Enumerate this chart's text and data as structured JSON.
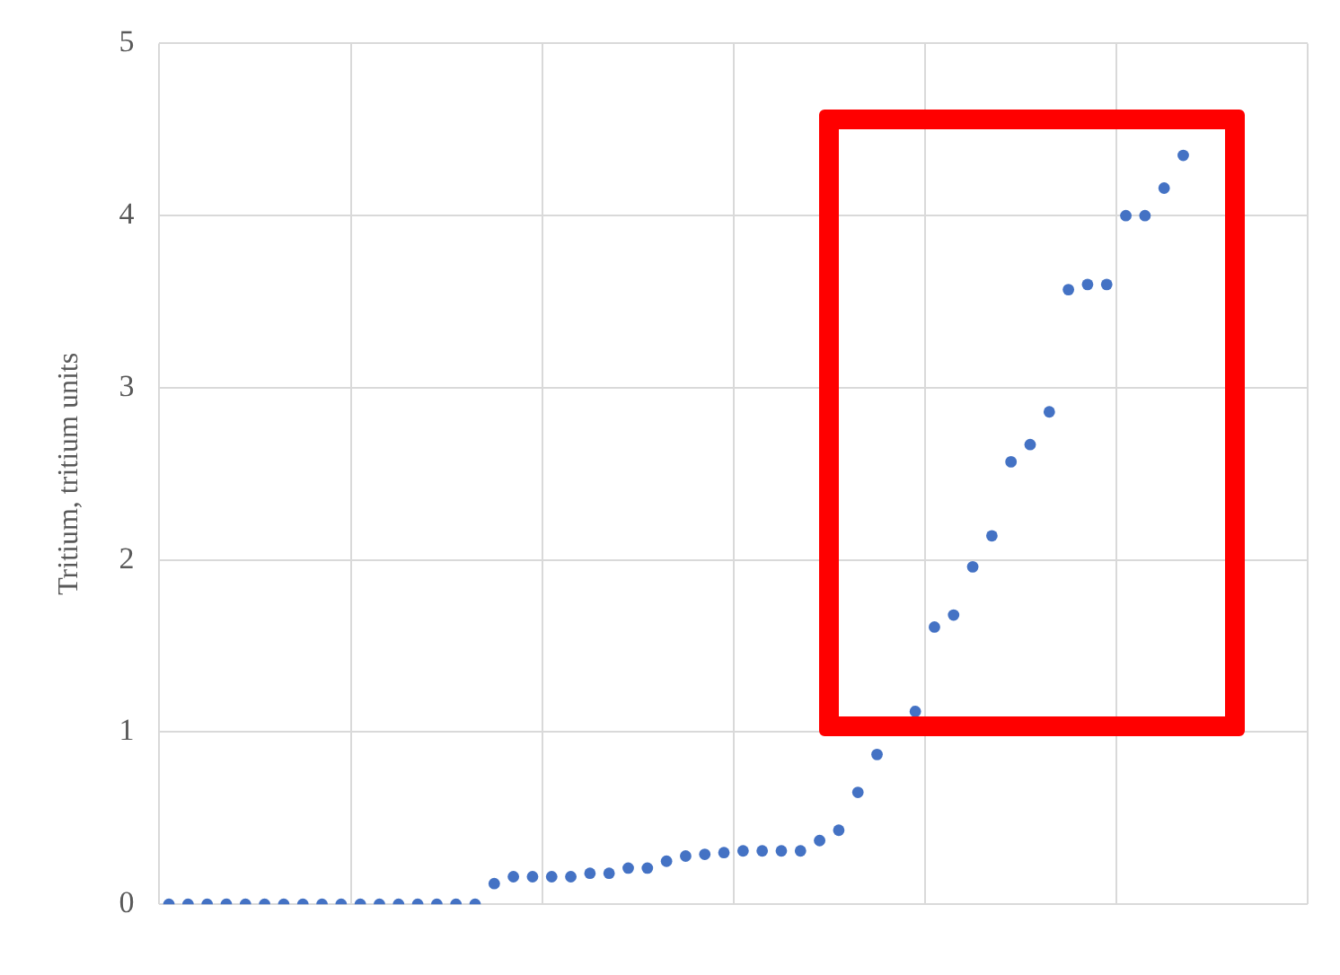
{
  "chart_data": {
    "type": "scatter",
    "ylabel": "Tritium, tritium units",
    "categories": [
      null,
      null,
      null,
      null,
      null,
      null,
      null,
      null,
      null,
      null,
      null,
      null,
      null,
      null,
      null,
      null,
      null,
      null,
      null,
      null,
      null,
      null,
      null,
      null,
      null,
      null,
      null,
      null,
      null,
      null,
      null,
      null,
      null,
      null,
      null,
      null,
      null,
      null,
      null,
      null,
      null,
      null,
      null,
      null,
      null,
      null,
      null,
      null,
      null,
      null,
      null,
      null,
      null,
      null,
      null,
      null,
      null,
      null,
      null,
      null
    ],
    "values": [
      0,
      0,
      0,
      0,
      0,
      0,
      0,
      0,
      0,
      0,
      0,
      0,
      0,
      0,
      0,
      0,
      0,
      0.12,
      0.16,
      0.16,
      0.16,
      0.16,
      0.18,
      0.18,
      0.21,
      0.21,
      0.25,
      0.28,
      0.29,
      0.3,
      0.31,
      0.31,
      0.31,
      0.31,
      0.37,
      0.43,
      0.65,
      0.87,
      null,
      1.12,
      1.61,
      1.68,
      1.96,
      2.14,
      2.57,
      2.67,
      2.86,
      3.57,
      3.6,
      3.6,
      4.0,
      4.0,
      4.16,
      4.35,
      null,
      null,
      null,
      null,
      null,
      null
    ],
    "color": "#4472c4",
    "marker": "circle",
    "ylim": [
      0,
      5
    ],
    "yticks": [
      0,
      1,
      2,
      3,
      4,
      5
    ],
    "grid": true,
    "legend": false
  }
}
